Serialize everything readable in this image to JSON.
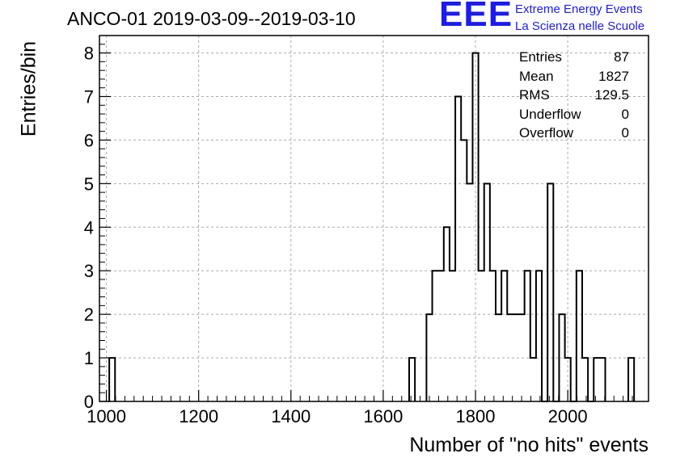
{
  "header": {
    "title": "ANCO-01 2019-03-09--2019-03-10"
  },
  "logo": {
    "mark": "EEE",
    "line1": "Extreme Energy Events",
    "line2": "La Scienza nelle Scuole",
    "color": "#1b1bf0"
  },
  "stats": [
    {
      "label": "Entries",
      "value": "87"
    },
    {
      "label": "Mean",
      "value": "1827"
    },
    {
      "label": "RMS",
      "value": "129.5"
    },
    {
      "label": "Underflow",
      "value": "0"
    },
    {
      "label": "Overflow",
      "value": "0"
    }
  ],
  "chart_data": {
    "type": "histogram",
    "xlabel": "Number of \"no hits\" events",
    "ylabel": "Entries/bin",
    "xlim": [
      985,
      2175
    ],
    "ylim": [
      0,
      8.4
    ],
    "bin_width": 12.5,
    "grid": true,
    "xticks": [
      1000,
      1200,
      1400,
      1600,
      1800,
      2000
    ],
    "xtick_labels": [
      "1000",
      "1200",
      "1400",
      "1600",
      "1800",
      "2000"
    ],
    "yticks": [
      0,
      1,
      2,
      3,
      4,
      5,
      6,
      7,
      8
    ],
    "ytick_labels": [
      "0",
      "1",
      "2",
      "3",
      "4",
      "5",
      "6",
      "7",
      "8"
    ],
    "bins": [
      {
        "x": 1012.5,
        "count": 1
      },
      {
        "x": 1662.5,
        "count": 1
      },
      {
        "x": 1700,
        "count": 2
      },
      {
        "x": 1712.5,
        "count": 3
      },
      {
        "x": 1725,
        "count": 3
      },
      {
        "x": 1737.5,
        "count": 4
      },
      {
        "x": 1750,
        "count": 3
      },
      {
        "x": 1762.5,
        "count": 7
      },
      {
        "x": 1775,
        "count": 6
      },
      {
        "x": 1787.5,
        "count": 5
      },
      {
        "x": 1800,
        "count": 8
      },
      {
        "x": 1812.5,
        "count": 3
      },
      {
        "x": 1825,
        "count": 5
      },
      {
        "x": 1837.5,
        "count": 3
      },
      {
        "x": 1850,
        "count": 2
      },
      {
        "x": 1862.5,
        "count": 3
      },
      {
        "x": 1875,
        "count": 2
      },
      {
        "x": 1887.5,
        "count": 2
      },
      {
        "x": 1900,
        "count": 2
      },
      {
        "x": 1912.5,
        "count": 3
      },
      {
        "x": 1925,
        "count": 1
      },
      {
        "x": 1937.5,
        "count": 3
      },
      {
        "x": 1950,
        "count": 0
      },
      {
        "x": 1962.5,
        "count": 5
      },
      {
        "x": 1975,
        "count": 0
      },
      {
        "x": 1987.5,
        "count": 2
      },
      {
        "x": 2000,
        "count": 1
      },
      {
        "x": 2012.5,
        "count": 0
      },
      {
        "x": 2025,
        "count": 3
      },
      {
        "x": 2037.5,
        "count": 1
      },
      {
        "x": 2050,
        "count": 0
      },
      {
        "x": 2062.5,
        "count": 1
      },
      {
        "x": 2075,
        "count": 1
      },
      {
        "x": 2137.5,
        "count": 1
      }
    ]
  }
}
